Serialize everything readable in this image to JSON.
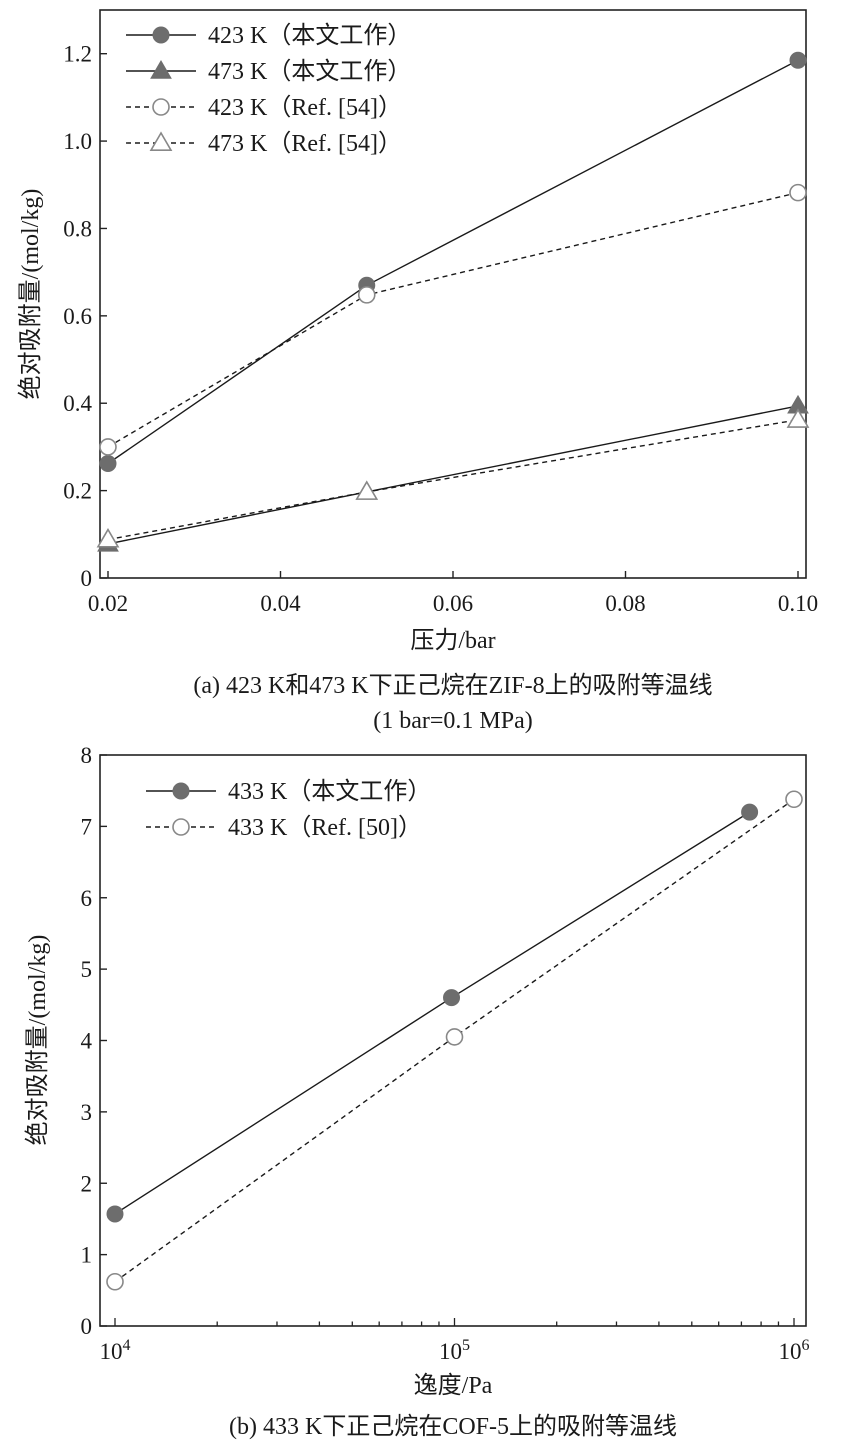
{
  "chart_data": [
    {
      "id": "a",
      "type": "line",
      "xscale": "linear",
      "xlim": [
        0.02,
        0.1
      ],
      "ylim": [
        0,
        1.3
      ],
      "xticks": [
        0.02,
        0.04,
        0.06,
        0.08,
        0.1
      ],
      "xtick_labels": [
        "0.02",
        "0.04",
        "0.06",
        "0.08",
        "0.10"
      ],
      "yticks": [
        0,
        0.2,
        0.4,
        0.6,
        0.8,
        1.0,
        1.2
      ],
      "ytick_labels": [
        "0",
        "0.2",
        "0.4",
        "0.6",
        "0.8",
        "1.0",
        "1.2"
      ],
      "xlabel": "压力/bar",
      "ylabel": "绝对吸附量/(mol/kg)",
      "legend_position": "top-left",
      "series": [
        {
          "name": "423 K（本文工作）",
          "marker": "circle",
          "filled": true,
          "line": "solid",
          "color": "#6d6d6d",
          "x": [
            0.02,
            0.05,
            0.1
          ],
          "y": [
            0.262,
            0.67,
            1.185
          ]
        },
        {
          "name": "473 K（本文工作）",
          "marker": "triangle",
          "filled": true,
          "line": "solid",
          "color": "#6d6d6d",
          "x": [
            0.02,
            0.05,
            0.1
          ],
          "y": [
            0.078,
            0.197,
            0.394
          ]
        },
        {
          "name": "423 K（Ref. [54]）",
          "marker": "circle",
          "filled": false,
          "line": "dashed",
          "color": "#888888",
          "x": [
            0.02,
            0.05,
            0.1
          ],
          "y": [
            0.3,
            0.648,
            0.882
          ]
        },
        {
          "name": "473 K（Ref. [54]）",
          "marker": "triangle",
          "filled": false,
          "line": "dashed",
          "color": "#888888",
          "x": [
            0.02,
            0.05,
            0.1
          ],
          "y": [
            0.088,
            0.197,
            0.362
          ]
        }
      ],
      "caption_lines": [
        "(a) 423 K和473 K下正己烷在ZIF-8上的吸附等温线",
        "(1 bar=0.1 MPa)"
      ]
    },
    {
      "id": "b",
      "type": "line",
      "xscale": "log",
      "xlim": [
        10000,
        1000000
      ],
      "ylim": [
        0,
        8
      ],
      "xtick_base": "10",
      "xticks": [
        10000,
        100000,
        1000000
      ],
      "xtick_exponents": [
        "4",
        "5",
        "6"
      ],
      "yticks": [
        0,
        1,
        2,
        3,
        4,
        5,
        6,
        7,
        8
      ],
      "ytick_labels": [
        "0",
        "1",
        "2",
        "3",
        "4",
        "5",
        "6",
        "7",
        "8"
      ],
      "xlabel": "逸度/Pa",
      "ylabel": "绝对吸附量/(mol/kg)",
      "legend_position": "top-left",
      "series": [
        {
          "name": "433 K（本文工作）",
          "marker": "circle",
          "filled": true,
          "line": "solid",
          "color": "#6d6d6d",
          "x": [
            10000,
            98000,
            740000
          ],
          "y": [
            1.57,
            4.6,
            7.2
          ]
        },
        {
          "name": "433 K（Ref. [50]）",
          "marker": "circle",
          "filled": false,
          "line": "dashed",
          "color": "#888888",
          "x": [
            10000,
            100000,
            1000000
          ],
          "y": [
            0.62,
            4.05,
            7.38
          ]
        }
      ],
      "caption_lines": [
        "(b) 433 K下正己烷在COF-5上的吸附等温线"
      ]
    }
  ]
}
